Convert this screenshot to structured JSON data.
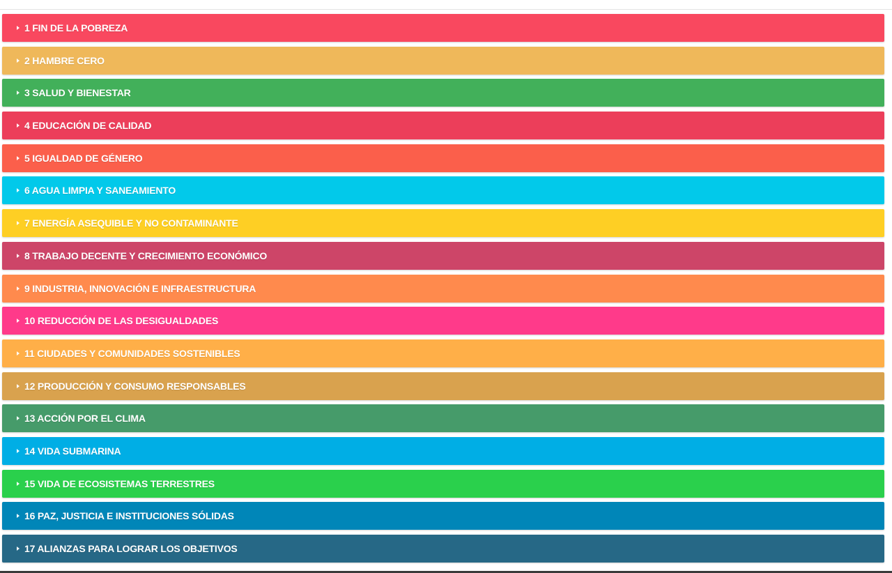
{
  "goals": [
    {
      "label": "1 FIN DE LA POBREZA",
      "color": "#F9485F"
    },
    {
      "label": "2 HAMBRE CERO",
      "color": "#EFB85A"
    },
    {
      "label": "3 SALUD Y BIENESTAR",
      "color": "#42B05A"
    },
    {
      "label": "4 EDUCACIÓN DE CALIDAD",
      "color": "#EC3E5A"
    },
    {
      "label": "5 IGUALDAD DE GÉNERO",
      "color": "#FB5F4B"
    },
    {
      "label": "6 AGUA LIMPIA Y SANEAMIENTO",
      "color": "#02C9EA"
    },
    {
      "label": "7 ENERGÍA ASEQUIBLE Y NO CONTAMINANTE",
      "color": "#FECF24"
    },
    {
      "label": "8 TRABAJO DECENTE Y CRECIMIENTO ECONÓMICO",
      "color": "#CD4568"
    },
    {
      "label": "9 INDUSTRIA, INNOVACIÓN E INFRAESTRUCTURA",
      "color": "#FF8A4D"
    },
    {
      "label": "10 REDUCCIÓN DE LAS DESIGUALDADES",
      "color": "#FF3A8A"
    },
    {
      "label": "11 CIUDADES Y COMUNIDADES SOSTENIBLES",
      "color": "#FFAF48"
    },
    {
      "label": "12 PRODUCCIÓN Y CONSUMO RESPONSABLES",
      "color": "#D9A24E"
    },
    {
      "label": "13 ACCIÓN POR EL CLIMA",
      "color": "#469B6A"
    },
    {
      "label": "14 VIDA SUBMARINA",
      "color": "#00AEE5"
    },
    {
      "label": "15 VIDA DE ECOSISTEMAS TERRESTRES",
      "color": "#2AD04C"
    },
    {
      "label": "16 PAZ, JUSTICIA E INSTITUCIONES SÓLIDAS",
      "color": "#0086B8"
    },
    {
      "label": "17 ALIANZAS PARA LOGRAR LOS OBJETIVOS",
      "color": "#266886"
    }
  ]
}
